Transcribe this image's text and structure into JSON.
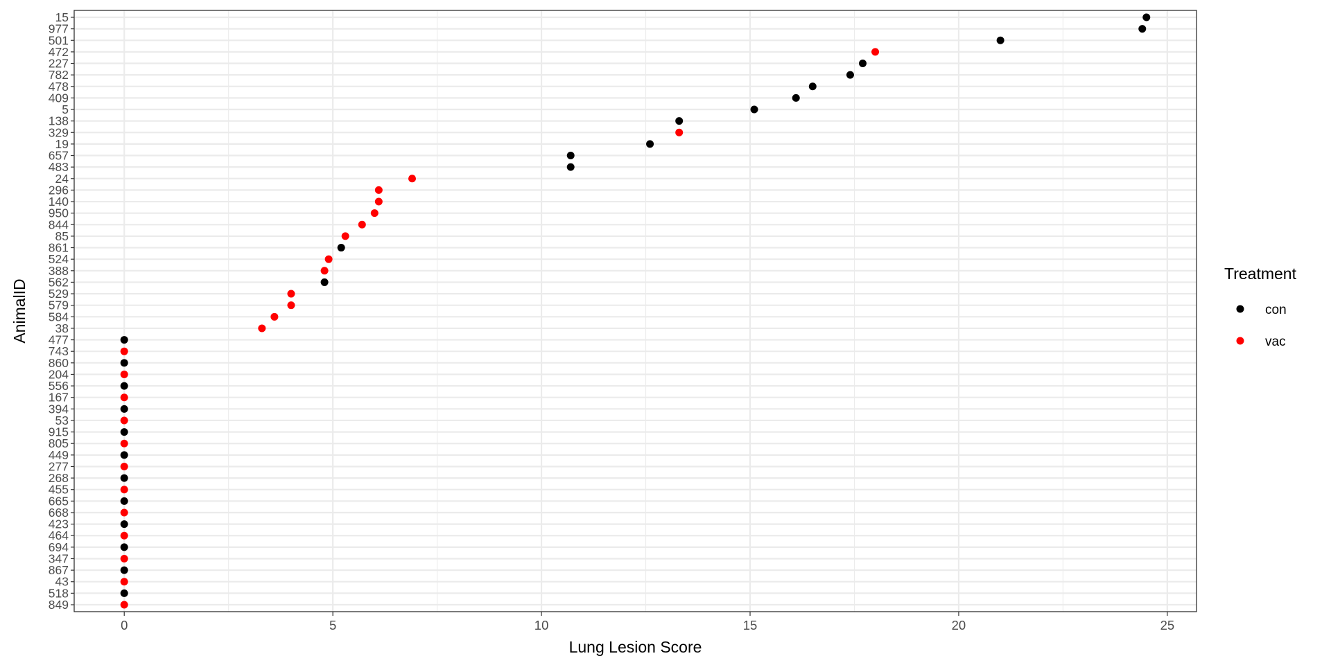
{
  "chart_data": {
    "type": "scatter",
    "xlabel": "Lung Lesion Score",
    "ylabel": "AnimalID",
    "xlim": [
      -1.2,
      25.7
    ],
    "xticks": [
      0,
      5,
      10,
      15,
      20,
      25
    ],
    "grid": true,
    "legend": {
      "title": "Treatment",
      "placement": "right",
      "entries": [
        {
          "label": "con",
          "color": "#000000"
        },
        {
          "label": "vac",
          "color": "#ff0000"
        }
      ]
    },
    "categories": [
      "15",
      "977",
      "501",
      "472",
      "227",
      "782",
      "478",
      "409",
      "5",
      "138",
      "329",
      "19",
      "657",
      "483",
      "24",
      "296",
      "140",
      "950",
      "844",
      "85",
      "861",
      "524",
      "388",
      "562",
      "529",
      "579",
      "584",
      "38",
      "477",
      "743",
      "860",
      "204",
      "556",
      "167",
      "394",
      "53",
      "915",
      "805",
      "449",
      "277",
      "268",
      "455",
      "665",
      "668",
      "423",
      "464",
      "694",
      "347",
      "867",
      "43",
      "518",
      "849"
    ],
    "series": [
      {
        "name": "con",
        "color": "#000000",
        "points": [
          {
            "y": "15",
            "x": 24.5
          },
          {
            "y": "977",
            "x": 24.4
          },
          {
            "y": "501",
            "x": 21.0
          },
          {
            "y": "227",
            "x": 17.7
          },
          {
            "y": "782",
            "x": 17.4
          },
          {
            "y": "478",
            "x": 16.5
          },
          {
            "y": "409",
            "x": 16.1
          },
          {
            "y": "5",
            "x": 15.1
          },
          {
            "y": "138",
            "x": 13.3
          },
          {
            "y": "19",
            "x": 12.6
          },
          {
            "y": "657",
            "x": 10.7
          },
          {
            "y": "483",
            "x": 10.7
          },
          {
            "y": "861",
            "x": 5.2
          },
          {
            "y": "562",
            "x": 4.8
          },
          {
            "y": "477",
            "x": 0
          },
          {
            "y": "860",
            "x": 0
          },
          {
            "y": "556",
            "x": 0
          },
          {
            "y": "394",
            "x": 0
          },
          {
            "y": "915",
            "x": 0
          },
          {
            "y": "449",
            "x": 0
          },
          {
            "y": "268",
            "x": 0
          },
          {
            "y": "665",
            "x": 0
          },
          {
            "y": "423",
            "x": 0
          },
          {
            "y": "694",
            "x": 0
          },
          {
            "y": "867",
            "x": 0
          },
          {
            "y": "518",
            "x": 0
          }
        ]
      },
      {
        "name": "vac",
        "color": "#ff0000",
        "points": [
          {
            "y": "472",
            "x": 18.0
          },
          {
            "y": "329",
            "x": 13.3
          },
          {
            "y": "24",
            "x": 6.9
          },
          {
            "y": "296",
            "x": 6.1
          },
          {
            "y": "140",
            "x": 6.1
          },
          {
            "y": "950",
            "x": 6.0
          },
          {
            "y": "844",
            "x": 5.7
          },
          {
            "y": "85",
            "x": 5.3
          },
          {
            "y": "524",
            "x": 4.9
          },
          {
            "y": "388",
            "x": 4.8
          },
          {
            "y": "529",
            "x": 4.0
          },
          {
            "y": "579",
            "x": 4.0
          },
          {
            "y": "584",
            "x": 3.6
          },
          {
            "y": "38",
            "x": 3.3
          },
          {
            "y": "743",
            "x": 0
          },
          {
            "y": "204",
            "x": 0
          },
          {
            "y": "167",
            "x": 0
          },
          {
            "y": "53",
            "x": 0
          },
          {
            "y": "805",
            "x": 0
          },
          {
            "y": "277",
            "x": 0
          },
          {
            "y": "455",
            "x": 0
          },
          {
            "y": "668",
            "x": 0
          },
          {
            "y": "464",
            "x": 0
          },
          {
            "y": "347",
            "x": 0
          },
          {
            "y": "43",
            "x": 0
          },
          {
            "y": "849",
            "x": 0
          }
        ]
      }
    ]
  }
}
